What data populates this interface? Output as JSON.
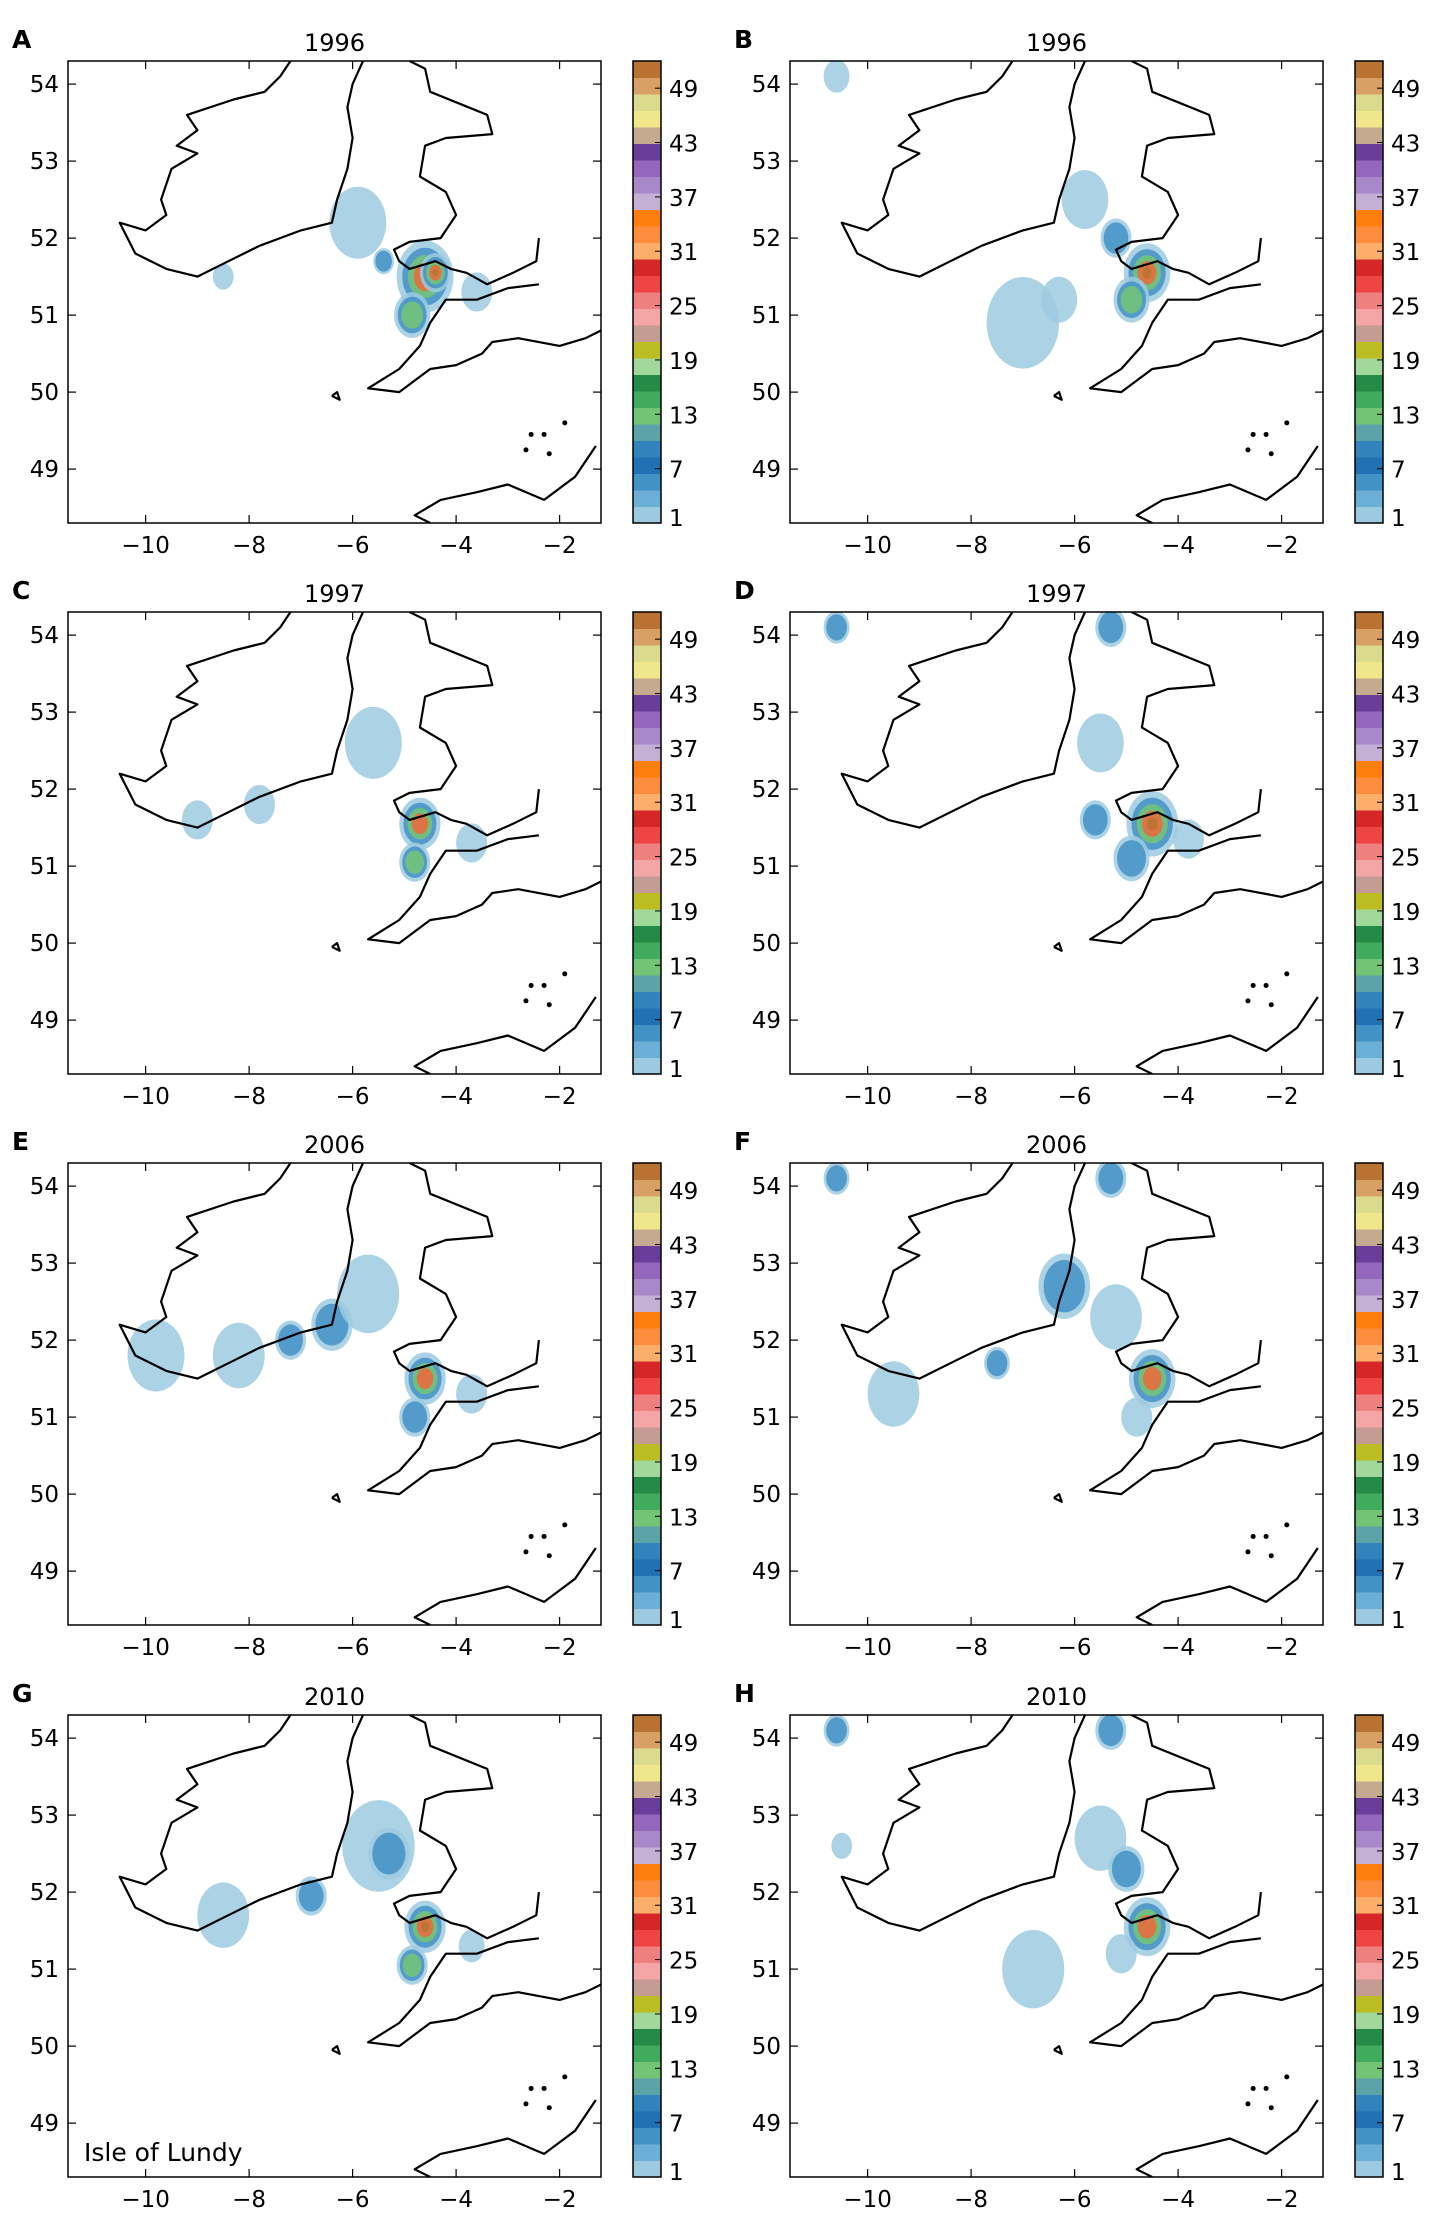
{
  "figure": {
    "panels": [
      {
        "letter": "A",
        "year": "1996"
      },
      {
        "letter": "B",
        "year": "1996"
      },
      {
        "letter": "C",
        "year": "1997"
      },
      {
        "letter": "D",
        "year": "1997"
      },
      {
        "letter": "E",
        "year": "2006"
      },
      {
        "letter": "F",
        "year": "2006"
      },
      {
        "letter": "G",
        "year": "2010"
      },
      {
        "letter": "H",
        "year": "2010"
      }
    ],
    "annotation": "Isle of Lundy"
  },
  "map_extent": {
    "lon": [
      -11.5,
      -1.2
    ],
    "lat": [
      48.3,
      54.3
    ]
  },
  "x_ticks": [
    "−10",
    "−8",
    "−6",
    "−4",
    "−2"
  ],
  "x_tick_values": [
    -10,
    -8,
    -6,
    -4,
    -2
  ],
  "y_ticks": [
    "49",
    "50",
    "51",
    "52",
    "53",
    "54"
  ],
  "y_tick_values": [
    49,
    50,
    51,
    52,
    53,
    54
  ],
  "colorbar": {
    "labels": [
      "1",
      "7",
      "13",
      "19",
      "25",
      "31",
      "37",
      "43",
      "49"
    ],
    "label_values": [
      1,
      7,
      13,
      19,
      25,
      31,
      37,
      43,
      49
    ],
    "range": [
      1,
      52
    ],
    "colors": [
      "#9ecae1",
      "#6baed6",
      "#4292c6",
      "#2171b5",
      "#3182bd",
      "#5ba3a8",
      "#74c476",
      "#41ab5d",
      "#238b45",
      "#a1d99b",
      "#bcbd22",
      "#c49c94",
      "#f4a6a6",
      "#f08080",
      "#ee4444",
      "#d62728",
      "#fdae6b",
      "#fd8d3c",
      "#ff7f0e",
      "#c5b0d5",
      "#a888c8",
      "#9467bd",
      "#6a3d9a",
      "#c7a98f",
      "#f0e68c",
      "#dbdb8d",
      "#d9a066",
      "#b87333"
    ]
  },
  "colors": {
    "coast": "#000000",
    "low": "#9ecae1",
    "mid": "#4292c6",
    "hot": "#ee6a3a",
    "peak": "#b87333"
  }
}
